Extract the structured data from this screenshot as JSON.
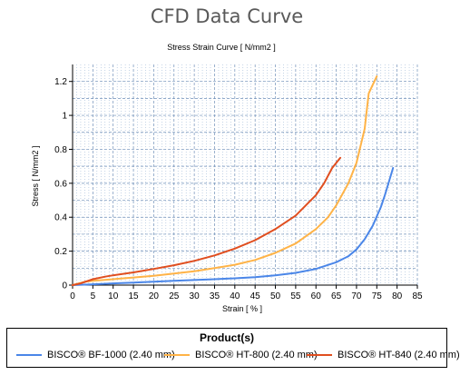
{
  "page": {
    "title": "CFD Data Curve"
  },
  "chart_data": {
    "type": "line",
    "title": "Stress Strain Curve [ N/mm2 ]",
    "xlabel": "Strain [ % ]",
    "ylabel": "Stress [ N/mm2 ]",
    "xlim": [
      0,
      85
    ],
    "ylim": [
      0,
      1.3
    ],
    "xticks": [
      0,
      5,
      10,
      15,
      20,
      25,
      30,
      35,
      40,
      45,
      50,
      55,
      60,
      65,
      70,
      75,
      80,
      85
    ],
    "xtick_labels": [
      "0",
      "5",
      "10",
      "15",
      "20",
      "25",
      "30",
      "35",
      "40",
      "45",
      "50",
      "55",
      "60",
      "65",
      "70",
      "75",
      "80",
      "85"
    ],
    "yticks": [
      0,
      0.2,
      0.4,
      0.6,
      0.8,
      1,
      1.2
    ],
    "ytick_labels": [
      "0",
      "0.2",
      "0.4",
      "0.6",
      "0.8",
      "1",
      "1.2"
    ],
    "grid": true,
    "legend_title": "Product(s)",
    "legend_position": "bottom",
    "series": [
      {
        "name": "BISCO® BF-1000 (2.40 mm)",
        "color": "#4A86E8",
        "x": [
          0,
          5,
          10,
          15,
          20,
          25,
          30,
          35,
          40,
          45,
          50,
          55,
          60,
          65,
          68,
          70,
          72,
          74,
          76,
          77,
          78,
          79
        ],
        "y": [
          0,
          0.005,
          0.01,
          0.015,
          0.02,
          0.025,
          0.03,
          0.035,
          0.04,
          0.047,
          0.057,
          0.072,
          0.095,
          0.135,
          0.17,
          0.21,
          0.27,
          0.35,
          0.46,
          0.53,
          0.61,
          0.69
        ]
      },
      {
        "name": "BISCO® HT-800 (2.40 mm)",
        "color": "#FFB347",
        "x": [
          0,
          3,
          5,
          10,
          15,
          20,
          25,
          30,
          35,
          40,
          45,
          50,
          55,
          60,
          63,
          65,
          68,
          70,
          72,
          73,
          74,
          75
        ],
        "y": [
          0,
          0.02,
          0.025,
          0.035,
          0.045,
          0.055,
          0.068,
          0.082,
          0.1,
          0.12,
          0.148,
          0.19,
          0.245,
          0.33,
          0.4,
          0.47,
          0.6,
          0.72,
          0.92,
          1.13,
          1.18,
          1.23
        ]
      },
      {
        "name": "BISCO® HT-840 (2.40 mm)",
        "color": "#E04E1F",
        "x": [
          0,
          2,
          5,
          8,
          10,
          15,
          20,
          25,
          30,
          35,
          40,
          45,
          50,
          55,
          60,
          62,
          64,
          65,
          66
        ],
        "y": [
          0,
          0.01,
          0.035,
          0.05,
          0.058,
          0.075,
          0.095,
          0.117,
          0.143,
          0.175,
          0.215,
          0.265,
          0.33,
          0.41,
          0.53,
          0.6,
          0.69,
          0.72,
          0.75
        ]
      }
    ]
  }
}
